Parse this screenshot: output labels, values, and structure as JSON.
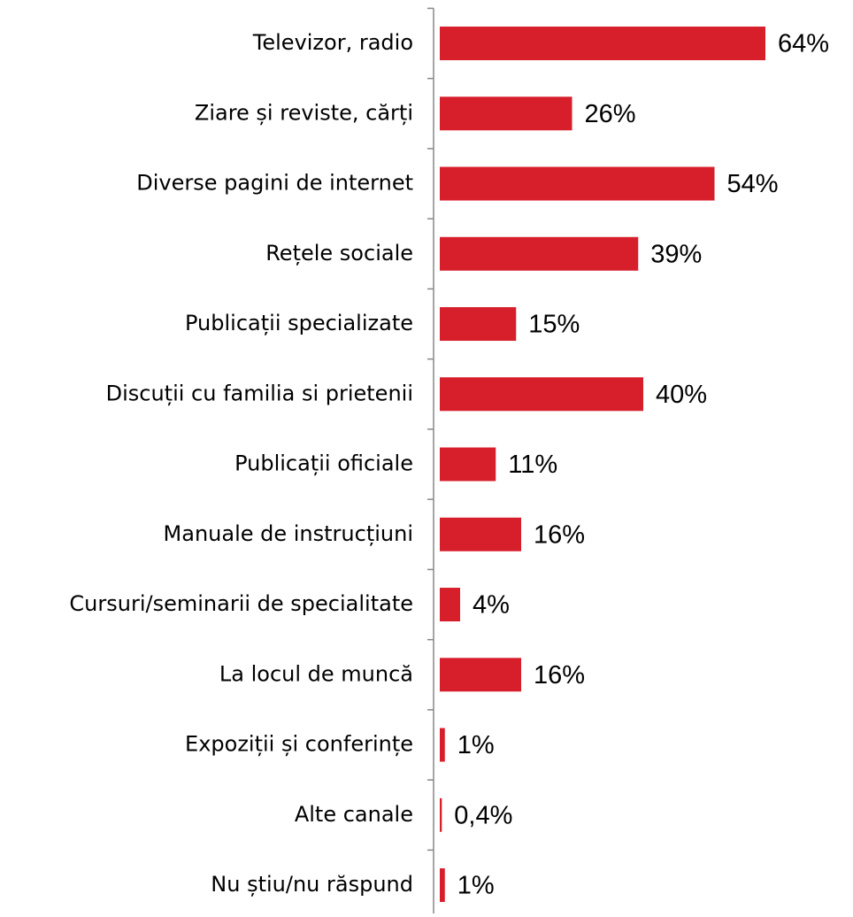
{
  "chart_data": {
    "type": "bar",
    "orientation": "horizontal",
    "color": "#d71f2c",
    "categories": [
      "Televizor, radio",
      "Ziare și reviste, cărți",
      "Diverse pagini de internet",
      "Rețele sociale",
      "Publicații specializate",
      "Discuții cu familia si prietenii",
      "Publicații oficiale",
      "Manuale de instrucțiuni",
      "Cursuri/seminarii de specialitate",
      "La locul de muncă",
      "Expoziții și conferințe",
      "Alte canale",
      "Nu știu/nu răspund"
    ],
    "values": [
      64,
      26,
      54,
      39,
      15,
      40,
      11,
      16,
      4,
      16,
      1,
      0.4,
      1
    ],
    "value_labels": [
      "64%",
      "26%",
      "54%",
      "39%",
      "15%",
      "40%",
      "11%",
      "16%",
      "4%",
      "16%",
      "1%",
      "0,4%",
      "1%"
    ]
  }
}
